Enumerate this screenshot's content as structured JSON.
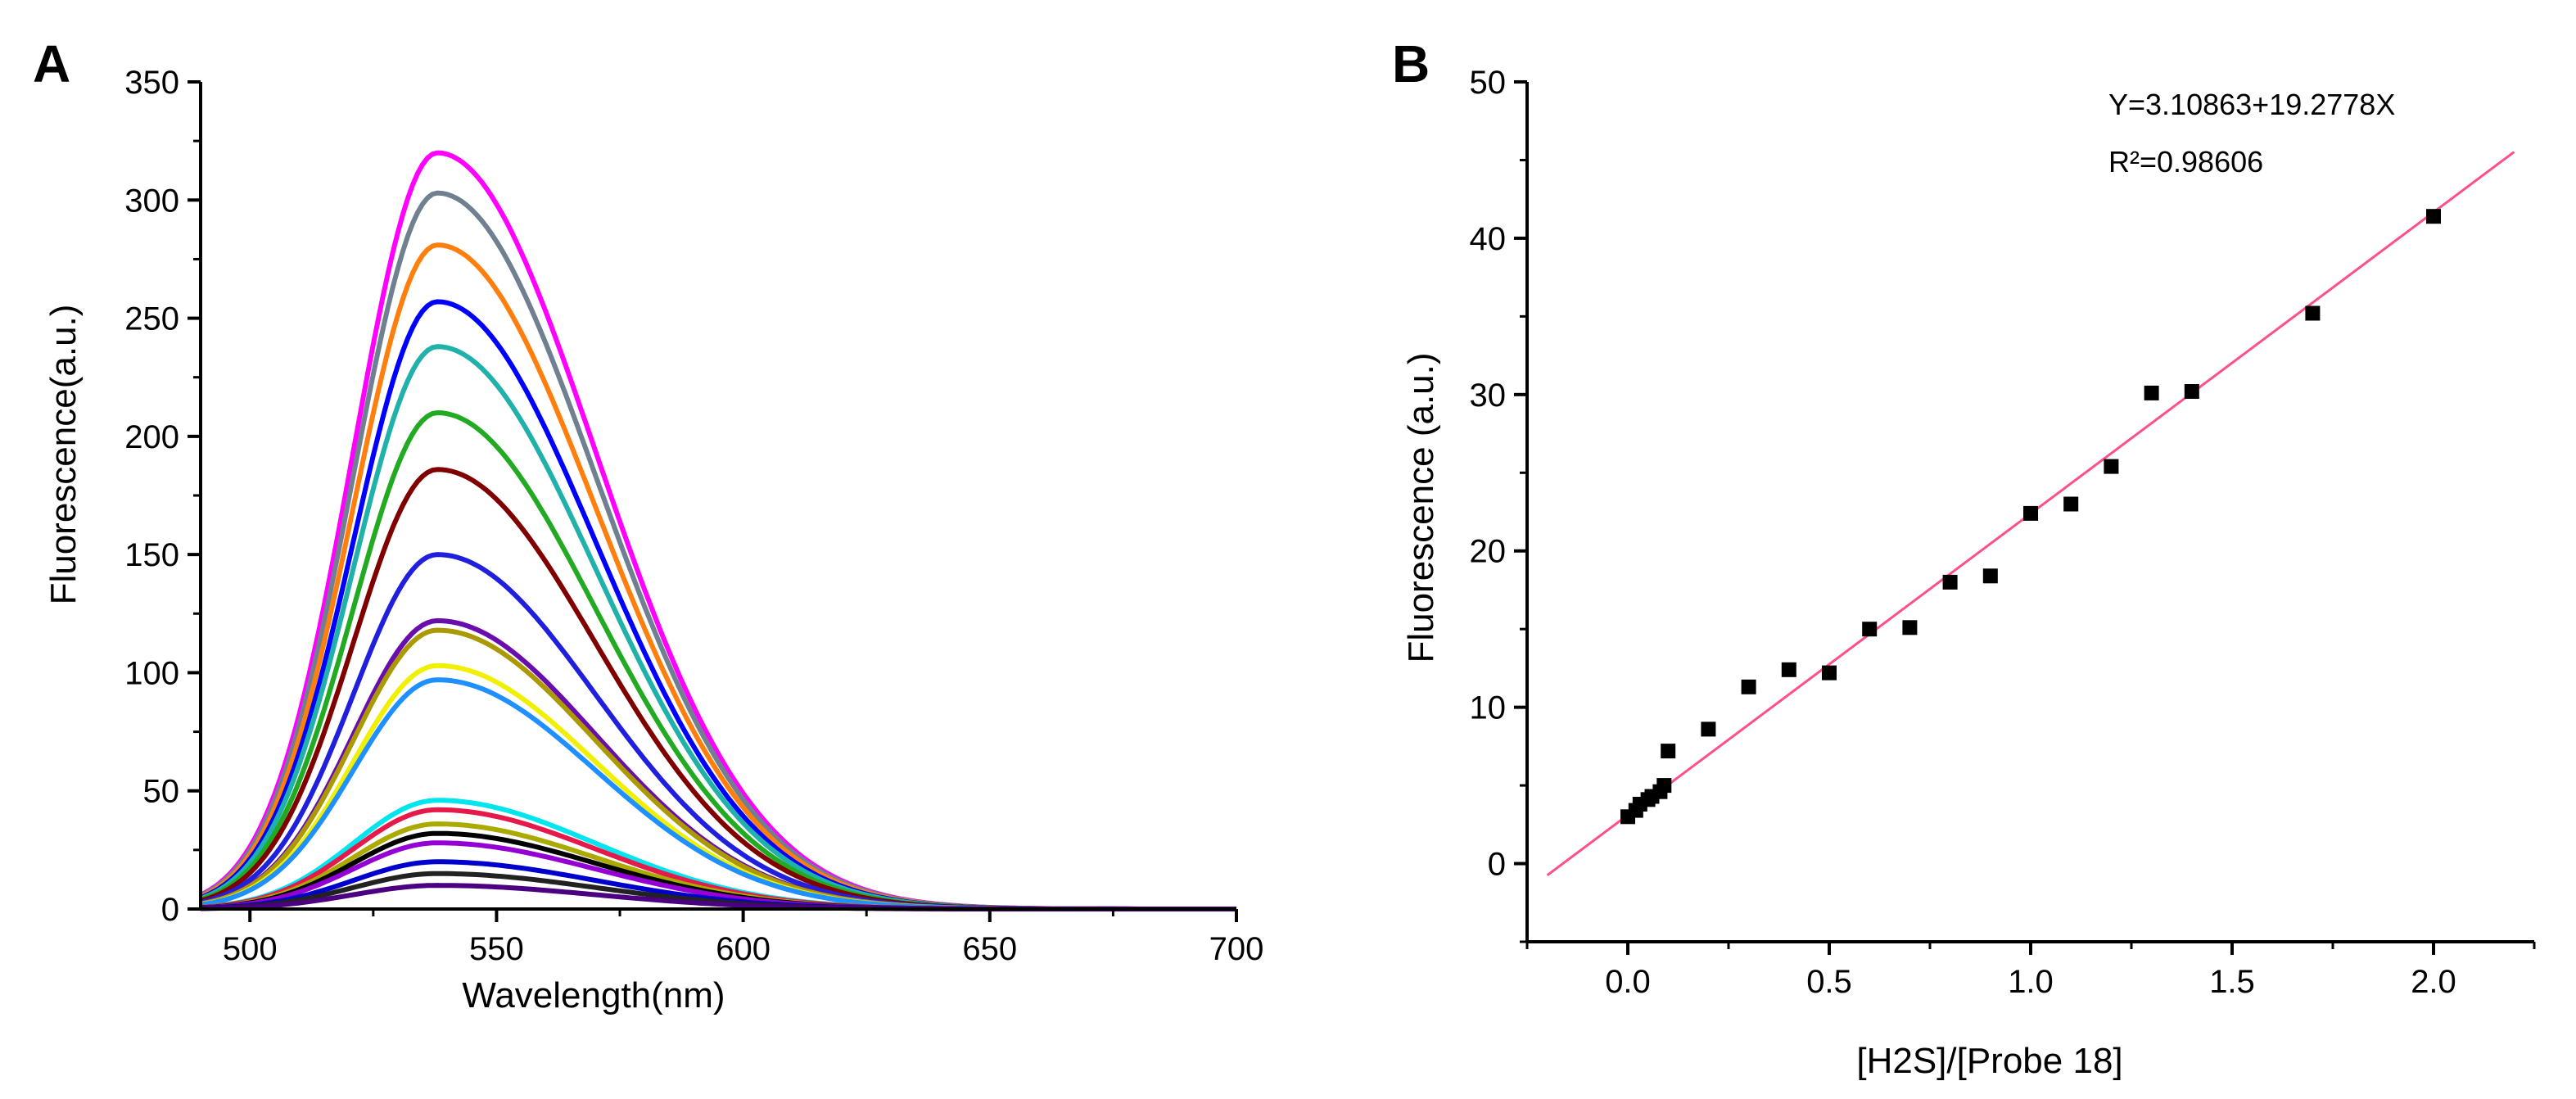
{
  "chart_data": [
    {
      "type": "line",
      "panel": "A",
      "title": "",
      "xlabel": "Wavelength(nm)",
      "ylabel": "Fluorescence(a.u.)",
      "xlim": [
        490,
        700
      ],
      "ylim": [
        0,
        350
      ],
      "xticks": [
        500,
        550,
        600,
        650,
        700
      ],
      "yticks": [
        0,
        50,
        100,
        150,
        200,
        250,
        300,
        350
      ],
      "grid": false,
      "peak_wavelength": 538,
      "series_colors": [
        "#ff00ff",
        "#708090",
        "#ff7f0e",
        "#0000ff",
        "#20b2aa",
        "#22aa22",
        "#800000",
        "#1f1fdd",
        "#6a0dad",
        "#aa9900",
        "#f0f000",
        "#1e90ff",
        "#00e5ee",
        "#e6194b",
        "#aaaa00",
        "#000000",
        "#9400d3",
        "#0000cd",
        "#222222",
        "#4b0082"
      ],
      "series": [
        {
          "peak": 320
        },
        {
          "peak": 303
        },
        {
          "peak": 281
        },
        {
          "peak": 257
        },
        {
          "peak": 238
        },
        {
          "peak": 210
        },
        {
          "peak": 186
        },
        {
          "peak": 150
        },
        {
          "peak": 122
        },
        {
          "peak": 118
        },
        {
          "peak": 103
        },
        {
          "peak": 97
        },
        {
          "peak": 46
        },
        {
          "peak": 42
        },
        {
          "peak": 36
        },
        {
          "peak": 32
        },
        {
          "peak": 28
        },
        {
          "peak": 20
        },
        {
          "peak": 15
        },
        {
          "peak": 10
        }
      ]
    },
    {
      "type": "scatter",
      "panel": "B",
      "title": "",
      "xlabel": "[H2S]/[Probe 18]",
      "ylabel": "Fluorescence (a.u.)",
      "xlim": [
        -0.25,
        2.25
      ],
      "ylim": [
        -5,
        50
      ],
      "xticks": [
        "0.0",
        "0.5",
        "1.0",
        "1.5",
        "2.0"
      ],
      "yticks": [
        0,
        10,
        20,
        30,
        40,
        50
      ],
      "grid": false,
      "points": [
        {
          "x": 0.0,
          "y": 3.0
        },
        {
          "x": 0.02,
          "y": 3.4
        },
        {
          "x": 0.03,
          "y": 3.8
        },
        {
          "x": 0.05,
          "y": 4.1
        },
        {
          "x": 0.06,
          "y": 4.3
        },
        {
          "x": 0.08,
          "y": 4.6
        },
        {
          "x": 0.09,
          "y": 5.0
        },
        {
          "x": 0.1,
          "y": 7.2
        },
        {
          "x": 0.2,
          "y": 8.6
        },
        {
          "x": 0.3,
          "y": 11.3
        },
        {
          "x": 0.4,
          "y": 12.4
        },
        {
          "x": 0.5,
          "y": 12.2
        },
        {
          "x": 0.6,
          "y": 15.0
        },
        {
          "x": 0.7,
          "y": 15.1
        },
        {
          "x": 0.8,
          "y": 18.0
        },
        {
          "x": 0.9,
          "y": 18.4
        },
        {
          "x": 1.0,
          "y": 22.4
        },
        {
          "x": 1.1,
          "y": 23.0
        },
        {
          "x": 1.2,
          "y": 25.4
        },
        {
          "x": 1.3,
          "y": 30.1
        },
        {
          "x": 1.4,
          "y": 30.2
        },
        {
          "x": 1.7,
          "y": 35.2
        },
        {
          "x": 2.0,
          "y": 41.4
        }
      ],
      "fit": {
        "intercept": 3.10863,
        "slope": 19.2778,
        "x_range": [
          -0.2,
          2.2
        ],
        "color": "#ff4f8b"
      },
      "equation_text": "Y=3.10863+19.2778X",
      "r2_text": "R²=0.98606"
    }
  ],
  "panels": {
    "A": {
      "letter": "A"
    },
    "B": {
      "letter": "B"
    }
  }
}
